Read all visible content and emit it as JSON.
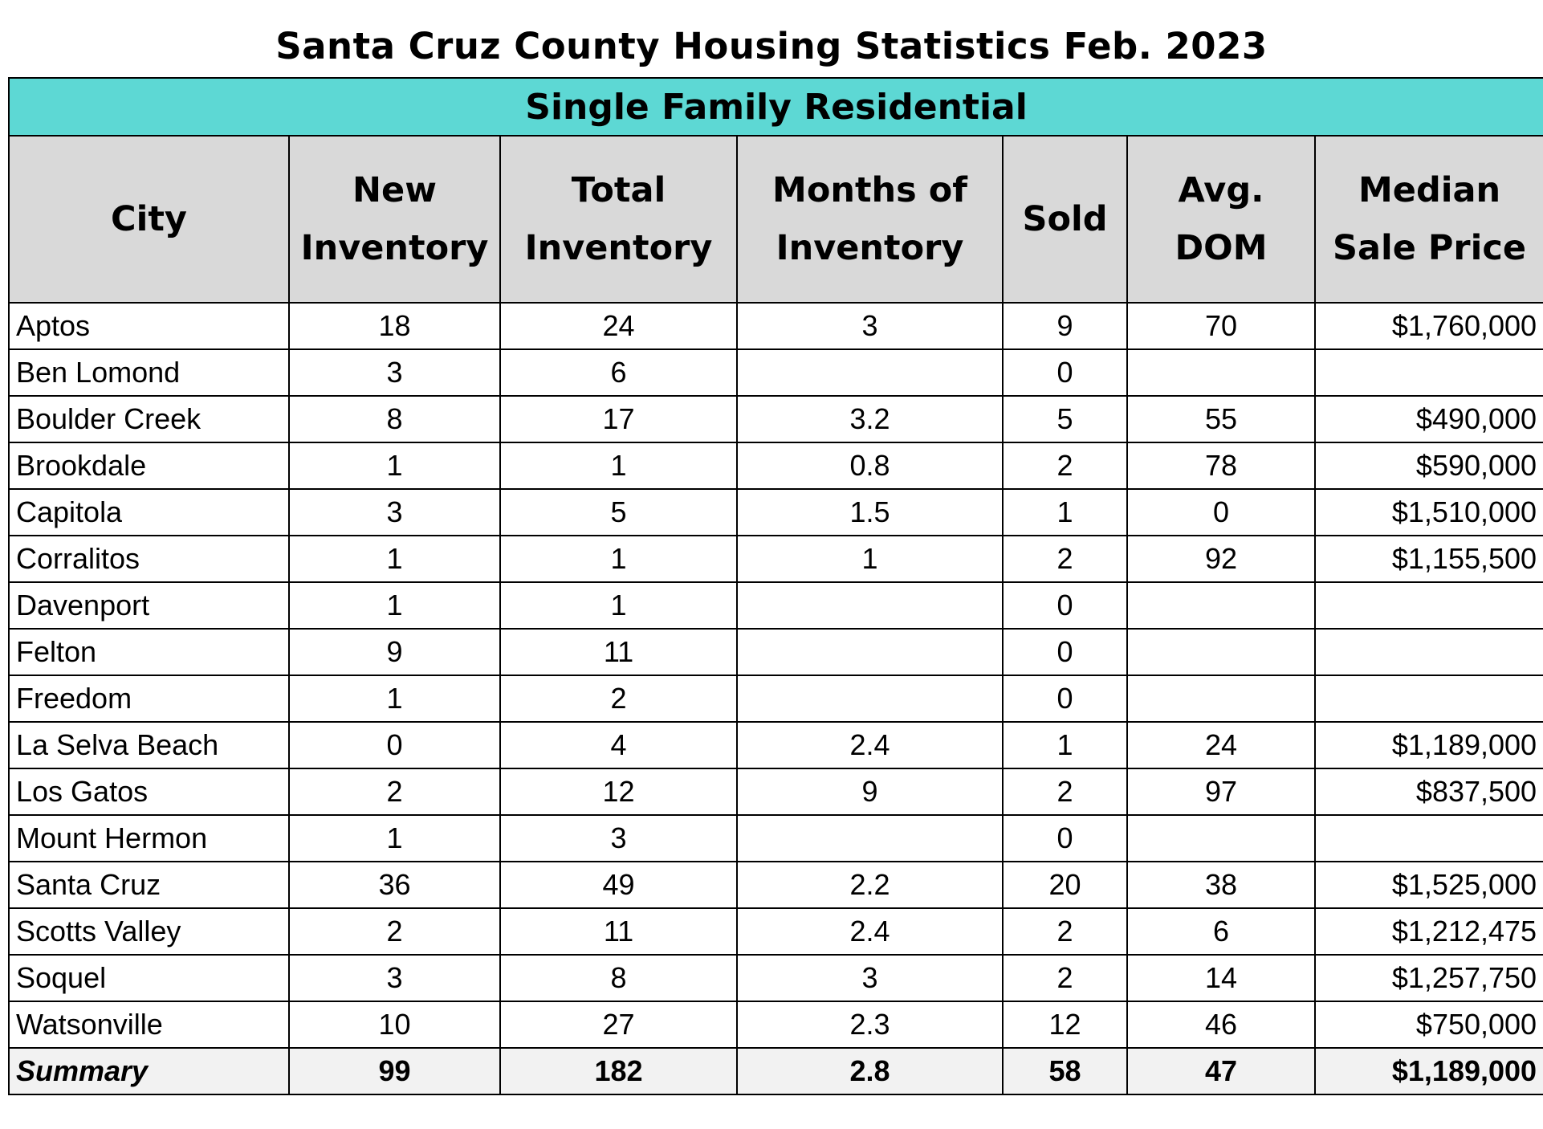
{
  "title": "Santa Cruz County Housing Statistics Feb. 2023",
  "section": "Single Family Residential",
  "columns": [
    "City",
    "New\nInventory",
    "Total\nInventory",
    "Months of\nInventory",
    "Sold",
    "Avg.\nDOM",
    "Median\nSale Price"
  ],
  "rows": [
    [
      "Aptos",
      "18",
      "24",
      "3",
      "9",
      "70",
      "$1,760,000"
    ],
    [
      "Ben Lomond",
      "3",
      "6",
      "",
      "0",
      "",
      ""
    ],
    [
      "Boulder Creek",
      "8",
      "17",
      "3.2",
      "5",
      "55",
      "$490,000"
    ],
    [
      "Brookdale",
      "1",
      "1",
      "0.8",
      "2",
      "78",
      "$590,000"
    ],
    [
      "Capitola",
      "3",
      "5",
      "1.5",
      "1",
      "0",
      "$1,510,000"
    ],
    [
      "Corralitos",
      "1",
      "1",
      "1",
      "2",
      "92",
      "$1,155,500"
    ],
    [
      "Davenport",
      "1",
      "1",
      "",
      "0",
      "",
      ""
    ],
    [
      "Felton",
      "9",
      "11",
      "",
      "0",
      "",
      ""
    ],
    [
      "Freedom",
      "1",
      "2",
      "",
      "0",
      "",
      ""
    ],
    [
      "La Selva Beach",
      "0",
      "4",
      "2.4",
      "1",
      "24",
      "$1,189,000"
    ],
    [
      "Los Gatos",
      "2",
      "12",
      "9",
      "2",
      "97",
      "$837,500"
    ],
    [
      "Mount Hermon",
      "1",
      "3",
      "",
      "0",
      "",
      ""
    ],
    [
      "Santa Cruz",
      "36",
      "49",
      "2.2",
      "20",
      "38",
      "$1,525,000"
    ],
    [
      "Scotts Valley",
      "2",
      "11",
      "2.4",
      "2",
      "6",
      "$1,212,475"
    ],
    [
      "Soquel",
      "3",
      "8",
      "3",
      "2",
      "14",
      "$1,257,750"
    ],
    [
      "Watsonville",
      "10",
      "27",
      "2.3",
      "12",
      "46",
      "$750,000"
    ]
  ],
  "summary": [
    "Summary",
    "99",
    "182",
    "2.8",
    "58",
    "47",
    "$1,189,000"
  ],
  "colors": {
    "section_bg": "#5dd8d4",
    "header_bg": "#d9d9d9",
    "summary_bg": "#f2f2f2"
  }
}
